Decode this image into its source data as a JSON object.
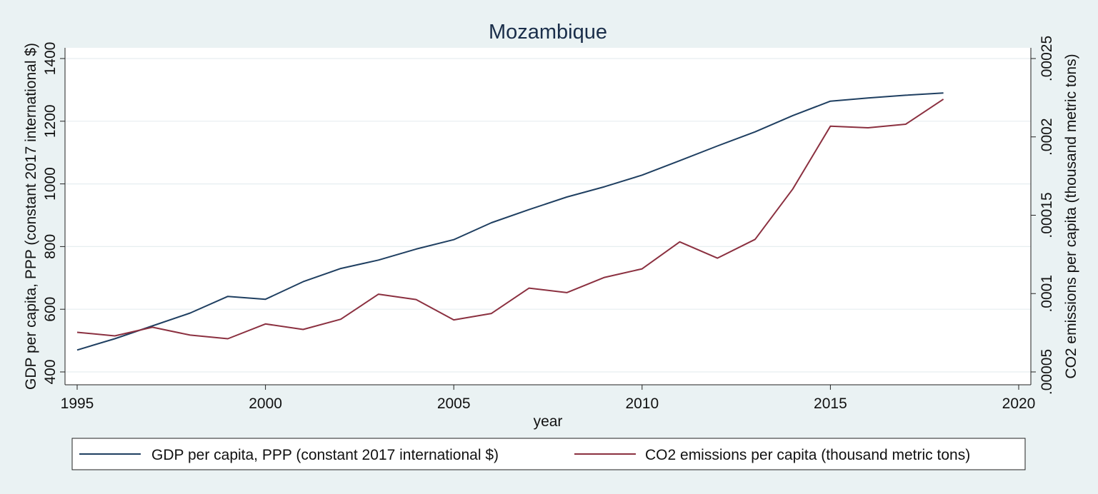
{
  "chart_data": {
    "type": "line",
    "title": "Mozambique",
    "xlabel": "year",
    "ylabel_left": "GDP per capita, PPP (constant 2017 international $)",
    "ylabel_right": "CO2 emissions per capita (thousand metric tons)",
    "xlim": [
      1995,
      2020
    ],
    "ylim_left": [
      400,
      1400
    ],
    "ylim_right": [
      5e-05,
      0.00025
    ],
    "x_ticks": [
      1995,
      2000,
      2005,
      2010,
      2015,
      2020
    ],
    "x_tick_labels": [
      "1995",
      "2000",
      "2005",
      "2010",
      "2015",
      "2020"
    ],
    "y_left_ticks": [
      400,
      600,
      800,
      1000,
      1200,
      1400
    ],
    "y_left_tick_labels": [
      "400",
      "600",
      "800",
      "1000",
      "1200",
      "1400"
    ],
    "y_right_ticks": [
      5e-05,
      0.0001,
      0.00015,
      0.0002,
      0.00025
    ],
    "y_right_tick_labels": [
      ".00005",
      ".0001",
      ".00015",
      ".0002",
      ".00025"
    ],
    "grid": true,
    "legend_position": "bottom",
    "x": [
      1995,
      1996,
      1997,
      1998,
      1999,
      2000,
      2001,
      2002,
      2003,
      2004,
      2005,
      2006,
      2007,
      2008,
      2009,
      2010,
      2011,
      2012,
      2013,
      2014,
      2015,
      2016,
      2017,
      2018
    ],
    "series": [
      {
        "name": "GDP per capita, PPP (constant 2017 international $)",
        "axis": "left",
        "color": "#1f3f61",
        "values": [
          470,
          506,
          547,
          588,
          641,
          632,
          688,
          730,
          757,
          792,
          822,
          876,
          918,
          958,
          991,
          1028,
          1074,
          1121,
          1166,
          1218,
          1264,
          1274,
          1283,
          1290
        ]
      },
      {
        "name": "CO2 emissions per capita (thousand metric tons)",
        "axis": "right",
        "color": "#8b3040",
        "values": [
          7.53e-05,
          7.3e-05,
          7.85e-05,
          7.35e-05,
          7.12e-05,
          8.06e-05,
          7.71e-05,
          8.36e-05,
          9.96e-05,
          9.62e-05,
          8.32e-05,
          8.73e-05,
          0.0001035,
          0.0001006,
          0.0001103,
          0.0001158,
          0.000133,
          0.0001226,
          0.0001346,
          0.0001667,
          0.0002068,
          0.0002058,
          0.0002081,
          0.0002241
        ]
      }
    ]
  }
}
